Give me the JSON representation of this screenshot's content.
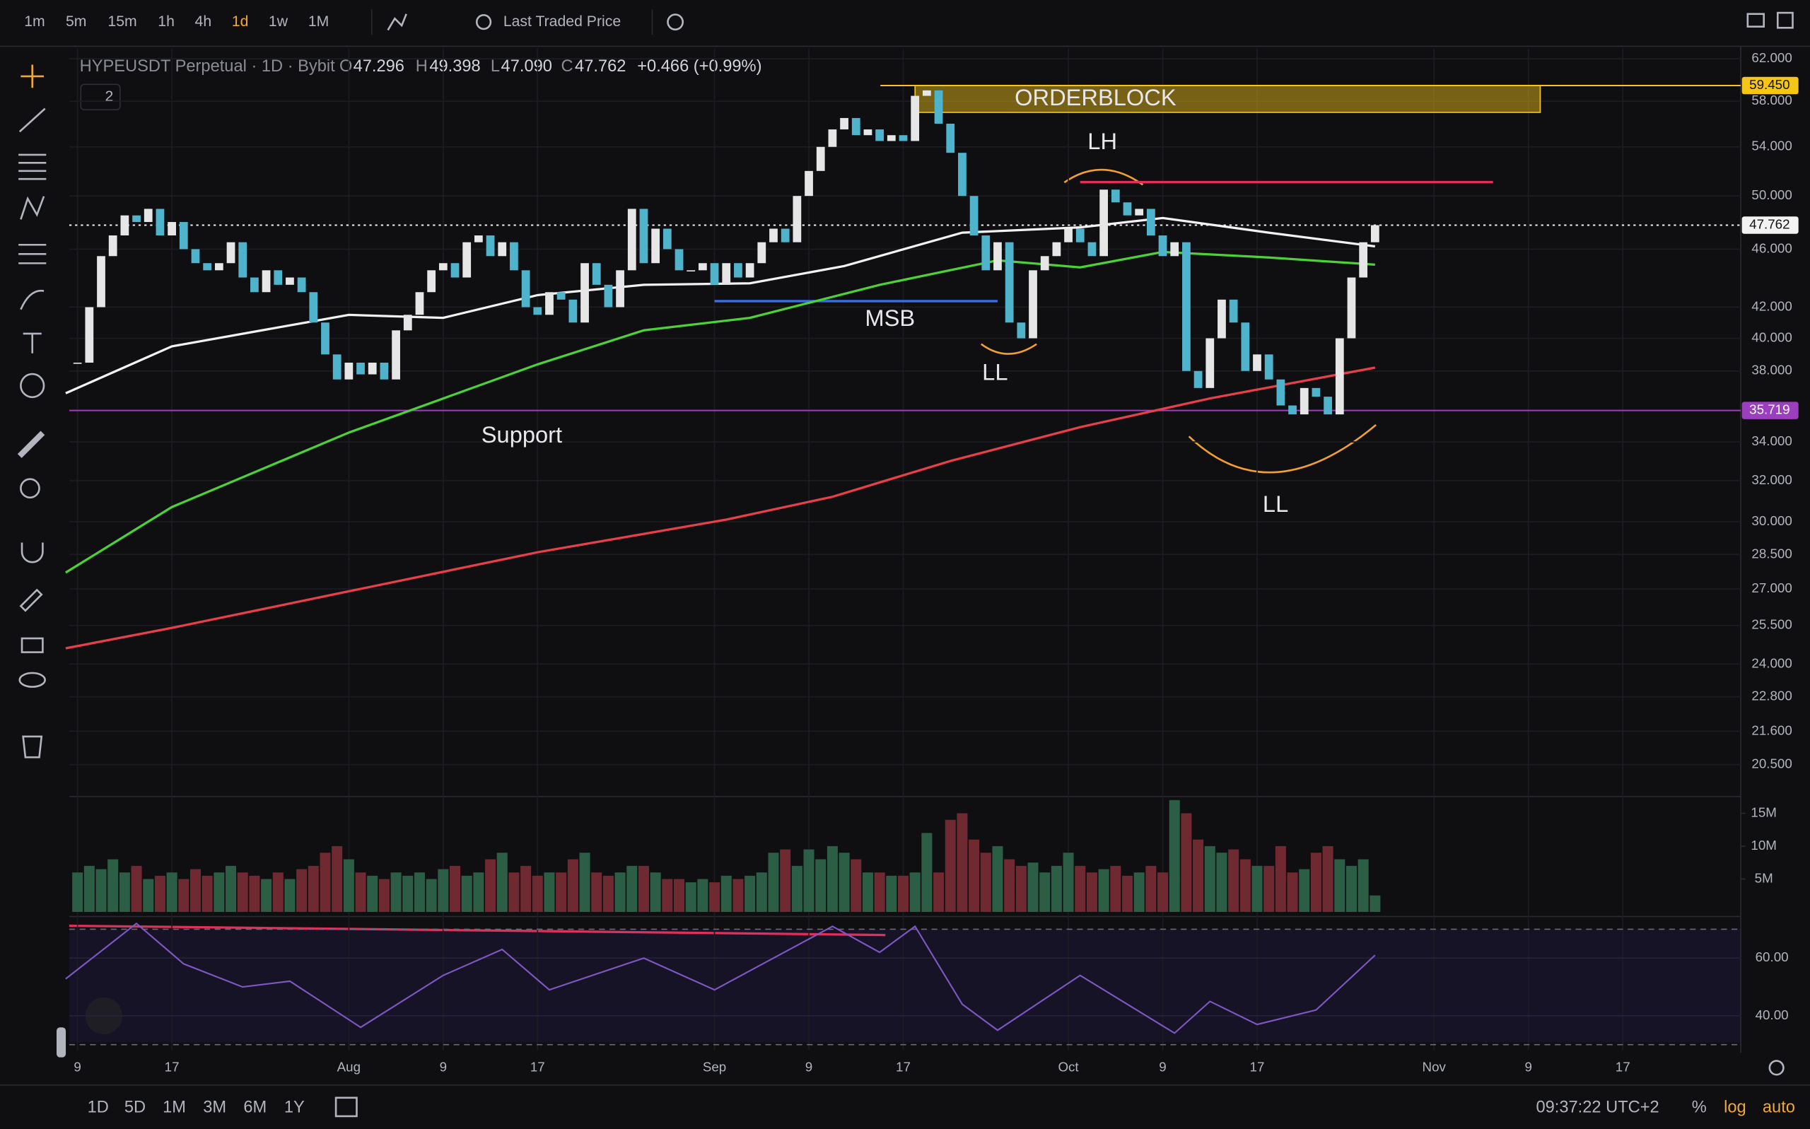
{
  "toolbar": {
    "intervals": [
      "1m",
      "5m",
      "15m",
      "1h",
      "4h",
      "1d",
      "1w",
      "1M"
    ],
    "active_interval": 5,
    "price_source": "Last Traded Price"
  },
  "legend": {
    "symbol": "HYPEUSDT Perpetual · 1D · Bybit",
    "o_label": "O",
    "open": "47.296",
    "h_label": "H",
    "high": "49.398",
    "l_label": "L",
    "low": "47.090",
    "c_label": "C",
    "close": "47.762",
    "change": "+0.466 (+0.99%)",
    "indicator_count": "2"
  },
  "chart_data": {
    "type": "candlestick",
    "x": [
      8,
      9,
      10,
      11,
      12,
      13,
      14,
      15,
      16,
      17,
      18,
      19,
      20,
      21,
      22,
      23,
      24,
      25,
      26,
      27,
      28,
      29,
      30,
      31,
      32,
      33,
      34,
      35,
      36,
      37,
      38,
      39,
      40,
      41,
      42,
      43,
      44,
      45,
      46,
      47,
      48,
      49,
      50,
      51,
      52,
      53,
      54,
      55,
      56,
      57,
      58,
      59,
      60,
      61,
      62,
      63,
      64,
      65,
      66,
      67,
      68,
      69,
      70,
      71,
      72,
      73,
      74,
      75,
      76,
      77,
      78,
      79,
      80,
      81,
      82,
      83,
      84,
      85,
      86,
      87,
      88,
      89,
      90,
      91,
      92,
      93,
      94,
      95,
      96,
      97,
      98,
      99,
      100,
      101,
      102,
      103,
      104,
      105,
      106,
      107,
      108,
      109,
      110,
      111,
      112,
      113,
      114,
      115,
      116,
      117,
      118
    ],
    "close": [
      38.5,
      42,
      45.5,
      47,
      48.5,
      48,
      49,
      47,
      48,
      46,
      45,
      44.5,
      45,
      46.5,
      44,
      43,
      44.5,
      43.5,
      44,
      43,
      41,
      39,
      37.5,
      38.5,
      37.8,
      38.5,
      37.5,
      40.5,
      41.5,
      43,
      44.5,
      45,
      44,
      46.5,
      47,
      45.5,
      46.5,
      44.5,
      42,
      41.5,
      43,
      42.5,
      41,
      45,
      43.5,
      42,
      44.5,
      49,
      45,
      47.5,
      46,
      44.5,
      44.5,
      45,
      43.5,
      45,
      44,
      45,
      46.5,
      47.5,
      46.5,
      50,
      52,
      54,
      55.5,
      56.5,
      55,
      55.5,
      54.5,
      55,
      54.5,
      58.5,
      59,
      56,
      53.5,
      50,
      47,
      44.5,
      46.5,
      41,
      40,
      44.5,
      45.5,
      46.5,
      47.5,
      46.5,
      45.5,
      50.5,
      49.5,
      48.5,
      49,
      47,
      45.5,
      46.5,
      38,
      37,
      40,
      42.5,
      41,
      38,
      39,
      37.5,
      36,
      35.5,
      37,
      36.5,
      35.5,
      40,
      44,
      46.5,
      47.762
    ],
    "volume": [
      6,
      7,
      6.5,
      8,
      6,
      7,
      5,
      5.5,
      6,
      5,
      6.5,
      5.5,
      6,
      7,
      6,
      5.5,
      5,
      6,
      5,
      6.5,
      7,
      9,
      10,
      8,
      6,
      5.5,
      5,
      6,
      5.5,
      6,
      5,
      6.5,
      7,
      5.5,
      6,
      8,
      9,
      6,
      7,
      5.5,
      6,
      6,
      8,
      9,
      6,
      5.5,
      6,
      7,
      7,
      6,
      5,
      5,
      4.5,
      5,
      4.5,
      5.5,
      5,
      5.5,
      6,
      9,
      9.5,
      7,
      9.5,
      8,
      10,
      9,
      8,
      6,
      6,
      5.5,
      5.5,
      6,
      12,
      6,
      14,
      15,
      11,
      9,
      10,
      8,
      7,
      7.5,
      6,
      7,
      9,
      7,
      6,
      6.5,
      7,
      5.5,
      6,
      7,
      6,
      17,
      15,
      11,
      10,
      9,
      9.5,
      8,
      7,
      7,
      10,
      6,
      6.5,
      9,
      10,
      8,
      7,
      8,
      2.5
    ],
    "up_color": "#e6e6e6",
    "down_color": "#4fb3cc",
    "volume_up_color": "#2c5e45",
    "volume_down_color": "#6e2a30",
    "log": true,
    "ylim": [
      19.5,
      63
    ],
    "xlim": [
      7.3,
      149
    ],
    "yticks": [
      {
        "value": 62,
        "label": "62.000"
      },
      {
        "value": 58,
        "label": "58.000"
      },
      {
        "value": 54,
        "label": "54.000"
      },
      {
        "value": 50,
        "label": "50.000"
      },
      {
        "value": 46,
        "label": "46.000"
      },
      {
        "value": 42,
        "label": "42.000"
      },
      {
        "value": 40,
        "label": "40.000"
      },
      {
        "value": 38,
        "label": "38.000"
      },
      {
        "value": 34,
        "label": "34.000"
      },
      {
        "value": 32,
        "label": "32.000"
      },
      {
        "value": 30,
        "label": "30.000"
      },
      {
        "value": 28.5,
        "label": "28.500"
      },
      {
        "value": 27,
        "label": "27.000"
      },
      {
        "value": 25.5,
        "label": "25.500"
      },
      {
        "value": 24,
        "label": "24.000"
      },
      {
        "value": 22.8,
        "label": "22.800"
      },
      {
        "value": 21.6,
        "label": "21.600"
      },
      {
        "value": 20.5,
        "label": "20.500"
      }
    ],
    "xticks": [
      {
        "value": 8,
        "label": "9"
      },
      {
        "value": 16,
        "label": "17"
      },
      {
        "value": 31,
        "label": "Aug"
      },
      {
        "value": 39,
        "label": "9"
      },
      {
        "value": 47,
        "label": "17"
      },
      {
        "value": 62,
        "label": "Sep"
      },
      {
        "value": 70,
        "label": "9"
      },
      {
        "value": 78,
        "label": "17"
      },
      {
        "value": 92,
        "label": "Oct"
      },
      {
        "value": 100,
        "label": "9"
      },
      {
        "value": 108,
        "label": "17"
      },
      {
        "value": 123,
        "label": "Nov"
      },
      {
        "value": 131,
        "label": "9"
      },
      {
        "value": 139,
        "label": "17"
      }
    ],
    "overlays": [
      {
        "color": "#f2f2f2",
        "x": [
          7,
          16,
          31,
          39,
          47,
          56,
          65,
          73,
          83,
          93,
          100,
          109,
          118
        ],
        "values": [
          36.7,
          39.5,
          41.5,
          41.3,
          42.8,
          43.5,
          43.6,
          44.8,
          47.2,
          47.6,
          48.3,
          47.2,
          46.2
        ]
      },
      {
        "color": "#4cd137",
        "x": [
          7,
          16,
          31,
          47,
          56,
          65,
          76,
          86,
          93,
          100,
          109,
          118
        ],
        "values": [
          27.7,
          30.7,
          34.5,
          38.4,
          40.5,
          41.3,
          43.5,
          45.2,
          44.7,
          45.8,
          45.4,
          44.9
        ]
      },
      {
        "color": "#e8404a",
        "x": [
          7,
          16,
          31,
          47,
          63,
          72,
          82,
          93,
          104,
          118
        ],
        "values": [
          24.6,
          25.4,
          26.9,
          28.6,
          30.1,
          31.2,
          33,
          34.8,
          36.4,
          38.2
        ]
      }
    ],
    "price_tags": [
      {
        "value": 59.45,
        "label": "59.450",
        "color": "#f5c518",
        "text_color": "#111111"
      },
      {
        "value": 47.762,
        "label": "47.762",
        "color": "#f2f2f2",
        "text_color": "#111111"
      },
      {
        "value": 35.719,
        "label": "35.719",
        "color": "#9c3fbf",
        "text_color": "#ffffff"
      }
    ],
    "orderblock": {
      "low": 57,
      "high": 59.45,
      "from": 79,
      "to": 132,
      "color": "#f5c518"
    },
    "levels": [
      {
        "value": 51.1,
        "from": 93,
        "to": 128,
        "color": "#e0305a"
      },
      {
        "value": 42.4,
        "from": 62,
        "to": 86,
        "color": "#3a6fe0"
      }
    ],
    "annotations": [
      "ORDERBLOCK",
      "LH",
      "MSB",
      "LL",
      "Support",
      "LL"
    ],
    "volume_ylim": [
      0,
      17.2
    ],
    "volume_yticks": [
      {
        "value": 15,
        "label": "15M"
      },
      {
        "value": 10,
        "label": "10M"
      },
      {
        "value": 5,
        "label": "5M"
      }
    ],
    "rsi": {
      "color": "#7e57c2",
      "x": [
        7,
        13,
        17,
        22,
        26,
        32,
        39,
        44,
        48,
        56,
        62,
        72,
        76,
        79,
        83,
        86,
        93,
        101,
        104,
        108,
        113,
        118
      ],
      "values": [
        52.8,
        72,
        58,
        50,
        52,
        36,
        54,
        63,
        49,
        60,
        49,
        71,
        62,
        71,
        44,
        35,
        54,
        34,
        45,
        37,
        42,
        61
      ],
      "ylim": [
        28,
        74
      ],
      "yticks": [
        {
          "value": 60,
          "label": "60.00"
        },
        {
          "value": 40,
          "label": "40.00"
        }
      ],
      "bands": [
        30,
        70
      ]
    }
  },
  "footer": {
    "ranges": [
      "1D",
      "5D",
      "1M",
      "3M",
      "6M",
      "1Y"
    ],
    "time": "09:37:22 UTC+2",
    "percent": "%",
    "log": "log",
    "auto": "auto"
  }
}
